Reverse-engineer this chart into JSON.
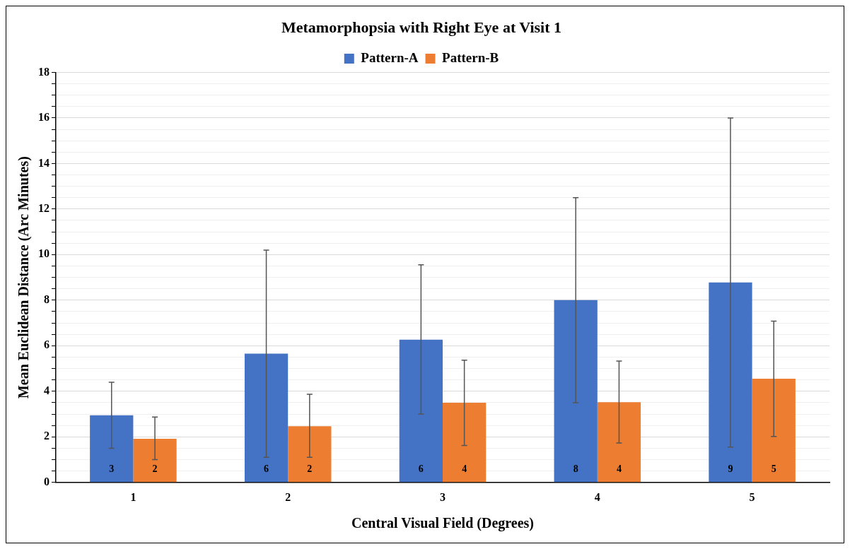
{
  "chart_data": {
    "type": "bar",
    "title": "Metamorphopsia with Right Eye at Visit 1",
    "xlabel": "Central Visual Field (Degrees)",
    "ylabel": "Mean Euclidean Distance (Arc Minutes)",
    "categories": [
      "1",
      "2",
      "3",
      "4",
      "5"
    ],
    "series": [
      {
        "name": "Pattern-A",
        "color": "#4472c4",
        "values": [
          2.95,
          5.65,
          6.27,
          8.0,
          8.78
        ],
        "errors": [
          [
            1.5,
            4.4
          ],
          [
            1.1,
            10.2
          ],
          [
            3.0,
            9.55
          ],
          [
            3.5,
            12.5
          ],
          [
            1.55,
            16.0
          ]
        ],
        "value_labels": [
          "3",
          "6",
          "6",
          "8",
          "9"
        ]
      },
      {
        "name": "Pattern-B",
        "color": "#ed7d31",
        "values": [
          1.92,
          2.47,
          3.5,
          3.52,
          4.55
        ],
        "errors": [
          [
            1.0,
            2.87
          ],
          [
            1.1,
            3.87
          ],
          [
            1.62,
            5.37
          ],
          [
            1.73,
            5.33
          ],
          [
            2.02,
            7.08
          ]
        ],
        "value_labels": [
          "2",
          "2",
          "4",
          "4",
          "5"
        ]
      }
    ],
    "ylim": [
      0,
      18
    ],
    "yticks": [
      0,
      {
        "value": 0.5,
        "label": null
      },
      {
        "value": 1,
        "label": null
      },
      {
        "value": 1.5,
        "label": null
      },
      2,
      {
        "value": 2.5,
        "label": null
      },
      {
        "value": 3,
        "label": null
      },
      {
        "value": 3.5,
        "label": null
      },
      4,
      {
        "value": 4.5,
        "label": null
      },
      {
        "value": 5,
        "label": null
      },
      {
        "value": 5.5,
        "label": null
      },
      6,
      {
        "value": 6.5,
        "label": null
      },
      {
        "value": 7,
        "label": null
      },
      {
        "value": 7.5,
        "label": null
      },
      8,
      {
        "value": 8.5,
        "label": null
      },
      {
        "value": 9,
        "label": null
      },
      {
        "value": 9.5,
        "label": null
      },
      10,
      {
        "value": 10.5,
        "label": null
      },
      {
        "value": 11,
        "label": null
      },
      {
        "value": 11.5,
        "label": null
      },
      12,
      {
        "value": 12.5,
        "label": null
      },
      {
        "value": 13,
        "label": null
      },
      {
        "value": 13.5,
        "label": null
      },
      14,
      {
        "value": 14.5,
        "label": null
      },
      {
        "value": 15,
        "label": null
      },
      {
        "value": 15.5,
        "label": null
      },
      16,
      {
        "value": 16.5,
        "label": null
      },
      {
        "value": 17,
        "label": null
      },
      {
        "value": 17.5,
        "label": null
      },
      18
    ],
    "grid": "y",
    "legend": "top"
  }
}
